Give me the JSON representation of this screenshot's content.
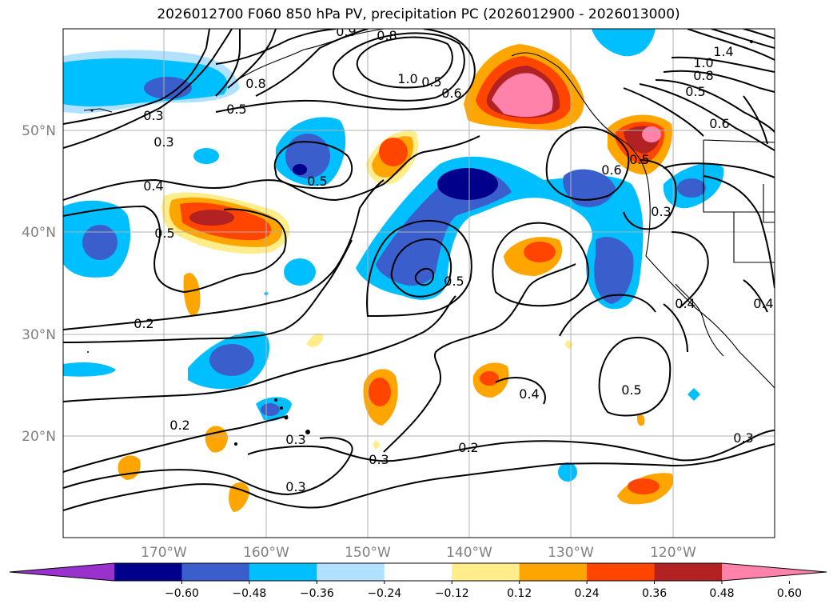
{
  "title": "2026012700 F060 850 hPa PV, precipitation PC (2026012900 - 2026013000)",
  "latitude_labels": [
    "50°N",
    "40°N",
    "30°N",
    "20°N"
  ],
  "longitude_labels": [
    "170°W",
    "160°W",
    "150°W",
    "140°W",
    "130°W",
    "120°W"
  ],
  "colorbar": {
    "tick_labels": [
      "−0.60",
      "−0.48",
      "−0.36",
      "−0.24",
      "−0.12",
      "0.12",
      "0.24",
      "0.36",
      "0.48",
      "0.60"
    ],
    "colors": [
      "#9932cc",
      "#00008b",
      "#3a5fcd",
      "#00bfff",
      "#b0e2ff",
      "#ffffff",
      "#ffec8b",
      "#ffa500",
      "#ff4500",
      "#b22222",
      "#ff82ab"
    ]
  },
  "contour_labels": [
    "0.8",
    "0.9",
    "1.0",
    "0.8",
    "0.6",
    "0.5",
    "0.3",
    "0.3",
    "0.4",
    "0.5",
    "0.5",
    "0.5",
    "0.2",
    "0.2",
    "0.3",
    "0.3",
    "0.4",
    "0.2",
    "0.3",
    "0.5",
    "0.5",
    "0.6",
    "0.5",
    "0.3",
    "0.3",
    "0.4",
    "0.4",
    "1.4",
    "1.0",
    "0.8",
    "0.5",
    "0.6"
  ]
}
